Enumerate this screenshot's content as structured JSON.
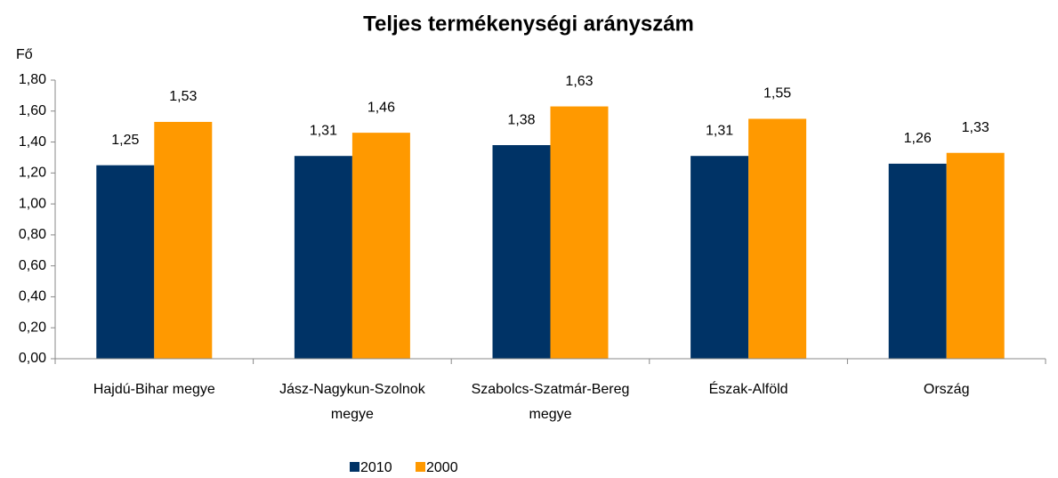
{
  "chart_data": {
    "type": "bar",
    "title": "Teljes termékenységi arányszám",
    "y_axis_label": "Fő",
    "categories": [
      "Hajdú-Bihar megye",
      "Jász-Nagykun-Szolnok megye",
      "Szabolcs-Szatmár-Bereg megye",
      "Észak-Alföld",
      "Ország"
    ],
    "series": [
      {
        "name": "2010",
        "color": "#003366",
        "values": [
          1.25,
          1.31,
          1.38,
          1.31,
          1.26
        ],
        "value_labels": [
          "1,25",
          "1,31",
          "1,38",
          "1,31",
          "1,26"
        ]
      },
      {
        "name": "2000",
        "color": "#ff9900",
        "values": [
          1.53,
          1.46,
          1.63,
          1.55,
          1.33
        ],
        "value_labels": [
          "1,53",
          "1,46",
          "1,63",
          "1,55",
          "1,33"
        ]
      }
    ],
    "ylim": [
      0,
      1.8
    ],
    "yticks": [
      {
        "value": 0,
        "label": "0,00"
      },
      {
        "value": 0.2,
        "label": "0,20"
      },
      {
        "value": 0.4,
        "label": "0,40"
      },
      {
        "value": 0.6,
        "label": "0,60"
      },
      {
        "value": 0.8,
        "label": "0,80"
      },
      {
        "value": 1.0,
        "label": "1,00"
      },
      {
        "value": 1.2,
        "label": "1,20"
      },
      {
        "value": 1.4,
        "label": "1,40"
      },
      {
        "value": 1.6,
        "label": "1,60"
      },
      {
        "value": 1.8,
        "label": "1,80"
      }
    ],
    "grid": false,
    "legend": "bottom"
  }
}
